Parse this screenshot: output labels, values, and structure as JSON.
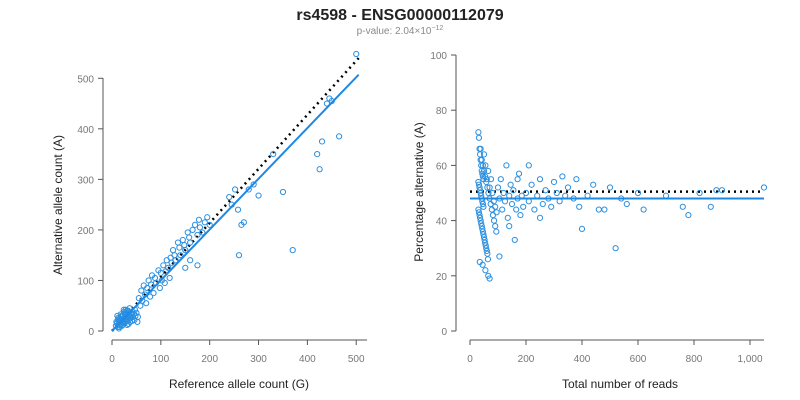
{
  "figure": {
    "title": "rs4598 - ENSG00000112079",
    "subtitle_prefix": "p-value: 2.04×10",
    "subtitle_exp": "−12"
  },
  "colors": {
    "points": "#2b8fe0",
    "fit": "#1e88e5",
    "reference": "#000000",
    "axis": "#555555"
  },
  "chart_data": [
    {
      "type": "scatter",
      "title": "",
      "xlabel": "Reference allele count (G)",
      "ylabel": "Alternative allele count (A)",
      "xlim": [
        0,
        520
      ],
      "ylim": [
        0,
        550
      ],
      "xticks": [
        0,
        100,
        200,
        300,
        400,
        500
      ],
      "yticks": [
        0,
        100,
        200,
        300,
        400,
        500
      ],
      "tick_labels_x": [
        "0",
        "100",
        "200",
        "300",
        "400",
        "500"
      ],
      "tick_labels_y": [
        "0",
        "100",
        "200",
        "300",
        "400",
        "500"
      ],
      "grid": false,
      "reference_line": {
        "style": "dotted",
        "color": "#000000",
        "points": [
          [
            0,
            0
          ],
          [
            505,
            540
          ]
        ]
      },
      "fit_line": {
        "style": "solid",
        "color": "#1e88e5",
        "points": [
          [
            0,
            0
          ],
          [
            505,
            507
          ]
        ]
      },
      "points": [
        [
          8,
          10
        ],
        [
          10,
          15
        ],
        [
          12,
          8
        ],
        [
          12,
          22
        ],
        [
          14,
          18
        ],
        [
          15,
          12
        ],
        [
          16,
          25
        ],
        [
          17,
          20
        ],
        [
          18,
          14
        ],
        [
          19,
          28
        ],
        [
          20,
          10
        ],
        [
          20,
          30
        ],
        [
          21,
          18
        ],
        [
          22,
          24
        ],
        [
          22,
          12
        ],
        [
          23,
          32
        ],
        [
          24,
          20
        ],
        [
          25,
          15
        ],
        [
          25,
          38
        ],
        [
          26,
          26
        ],
        [
          27,
          30
        ],
        [
          28,
          18
        ],
        [
          28,
          42
        ],
        [
          30,
          25
        ],
        [
          30,
          35
        ],
        [
          31,
          12
        ],
        [
          32,
          28
        ],
        [
          33,
          40
        ],
        [
          34,
          22
        ],
        [
          35,
          30
        ],
        [
          36,
          45
        ],
        [
          37,
          18
        ],
        [
          38,
          35
        ],
        [
          39,
          26
        ],
        [
          40,
          32
        ],
        [
          41,
          20
        ],
        [
          42,
          38
        ],
        [
          43,
          28
        ],
        [
          45,
          34
        ],
        [
          46,
          22
        ],
        [
          47,
          42
        ],
        [
          48,
          30
        ],
        [
          50,
          36
        ],
        [
          52,
          18
        ],
        [
          53,
          28
        ],
        [
          14,
          5
        ],
        [
          15,
          20
        ],
        [
          18,
          33
        ],
        [
          20,
          22
        ],
        [
          23,
          16
        ],
        [
          26,
          35
        ],
        [
          29,
          22
        ],
        [
          31,
          40
        ],
        [
          34,
          14
        ],
        [
          36,
          28
        ],
        [
          9,
          18
        ],
        [
          11,
          30
        ],
        [
          13,
          26
        ],
        [
          16,
          8
        ],
        [
          24,
          42
        ],
        [
          55,
          65
        ],
        [
          58,
          50
        ],
        [
          60,
          80
        ],
        [
          62,
          60
        ],
        [
          65,
          90
        ],
        [
          68,
          72
        ],
        [
          70,
          55
        ],
        [
          72,
          85
        ],
        [
          75,
          100
        ],
        [
          78,
          68
        ],
        [
          80,
          92
        ],
        [
          82,
          110
        ],
        [
          85,
          75
        ],
        [
          88,
          105
        ],
        [
          90,
          95
        ],
        [
          95,
          120
        ],
        [
          98,
          85
        ],
        [
          100,
          115
        ],
        [
          102,
          100
        ],
        [
          105,
          130
        ],
        [
          108,
          95
        ],
        [
          110,
          118
        ],
        [
          112,
          140
        ],
        [
          115,
          125
        ],
        [
          118,
          105
        ],
        [
          120,
          145
        ],
        [
          122,
          135
        ],
        [
          125,
          160
        ],
        [
          128,
          150
        ],
        [
          130,
          140
        ],
        [
          135,
          175
        ],
        [
          138,
          165
        ],
        [
          140,
          150
        ],
        [
          145,
          180
        ],
        [
          148,
          170
        ],
        [
          150,
          160
        ],
        [
          155,
          195
        ],
        [
          158,
          185
        ],
        [
          160,
          175
        ],
        [
          165,
          200
        ],
        [
          170,
          210
        ],
        [
          175,
          190
        ],
        [
          178,
          220
        ],
        [
          180,
          205
        ],
        [
          185,
          195
        ],
        [
          190,
          215
        ],
        [
          195,
          225
        ],
        [
          200,
          210
        ],
        [
          160,
          140
        ],
        [
          175,
          130
        ],
        [
          150,
          125
        ],
        [
          240,
          265
        ],
        [
          245,
          250
        ],
        [
          252,
          280
        ],
        [
          258,
          240
        ],
        [
          265,
          210
        ],
        [
          270,
          215
        ],
        [
          280,
          280
        ],
        [
          290,
          290
        ],
        [
          300,
          268
        ],
        [
          330,
          350
        ],
        [
          350,
          275
        ],
        [
          370,
          160
        ],
        [
          260,
          150
        ],
        [
          420,
          350
        ],
        [
          430,
          375
        ],
        [
          440,
          450
        ],
        [
          445,
          460
        ],
        [
          450,
          455
        ],
        [
          465,
          385
        ],
        [
          500,
          548
        ],
        [
          425,
          320
        ]
      ]
    },
    {
      "type": "scatter",
      "title": "",
      "xlabel": "Total number of reads",
      "ylabel": "Percentage alternative (A)",
      "xlim": [
        0,
        1050
      ],
      "ylim": [
        0,
        100
      ],
      "xticks": [
        0,
        200,
        400,
        600,
        800,
        1000
      ],
      "yticks": [
        0,
        20,
        40,
        60,
        80,
        100
      ],
      "tick_labels_x": [
        "0",
        "200",
        "400",
        "600",
        "800",
        "1,000"
      ],
      "tick_labels_y": [
        "0",
        "20",
        "40",
        "60",
        "80",
        "100"
      ],
      "grid": false,
      "reference_line": {
        "style": "dotted",
        "color": "#000000",
        "y": 50.5
      },
      "fit_line": {
        "style": "solid",
        "color": "#1e88e5",
        "y": 48
      },
      "points": [
        [
          30,
          72
        ],
        [
          32,
          70
        ],
        [
          34,
          66
        ],
        [
          36,
          64
        ],
        [
          38,
          62
        ],
        [
          40,
          60
        ],
        [
          42,
          58
        ],
        [
          44,
          57
        ],
        [
          46,
          56
        ],
        [
          48,
          55
        ],
        [
          30,
          54
        ],
        [
          32,
          53
        ],
        [
          34,
          52
        ],
        [
          36,
          51
        ],
        [
          38,
          50
        ],
        [
          40,
          49
        ],
        [
          42,
          48
        ],
        [
          44,
          47
        ],
        [
          46,
          46
        ],
        [
          48,
          45
        ],
        [
          30,
          44
        ],
        [
          32,
          43
        ],
        [
          34,
          42
        ],
        [
          36,
          41
        ],
        [
          38,
          40
        ],
        [
          40,
          39
        ],
        [
          42,
          38
        ],
        [
          44,
          37
        ],
        [
          46,
          36
        ],
        [
          48,
          35
        ],
        [
          50,
          34
        ],
        [
          52,
          33
        ],
        [
          54,
          32
        ],
        [
          56,
          31
        ],
        [
          58,
          30
        ],
        [
          60,
          29
        ],
        [
          62,
          28
        ],
        [
          64,
          26
        ],
        [
          35,
          25
        ],
        [
          45,
          24
        ],
        [
          55,
          22
        ],
        [
          65,
          20
        ],
        [
          70,
          19
        ],
        [
          38,
          66
        ],
        [
          42,
          62
        ],
        [
          46,
          60
        ],
        [
          50,
          58
        ],
        [
          54,
          56
        ],
        [
          58,
          54
        ],
        [
          62,
          52
        ],
        [
          66,
          50
        ],
        [
          70,
          48
        ],
        [
          74,
          46
        ],
        [
          78,
          44
        ],
        [
          82,
          42
        ],
        [
          86,
          40
        ],
        [
          90,
          38
        ],
        [
          94,
          36
        ],
        [
          50,
          64
        ],
        [
          55,
          60
        ],
        [
          60,
          55
        ],
        [
          65,
          58
        ],
        [
          70,
          52
        ],
        [
          75,
          55
        ],
        [
          80,
          50
        ],
        [
          85,
          47
        ],
        [
          90,
          45
        ],
        [
          95,
          43
        ],
        [
          100,
          52
        ],
        [
          105,
          48
        ],
        [
          110,
          55
        ],
        [
          115,
          44
        ],
        [
          120,
          50
        ],
        [
          125,
          47
        ],
        [
          130,
          60
        ],
        [
          135,
          41
        ],
        [
          140,
          49
        ],
        [
          145,
          53
        ],
        [
          150,
          46
        ],
        [
          155,
          51
        ],
        [
          160,
          33
        ],
        [
          165,
          44
        ],
        [
          170,
          48
        ],
        [
          175,
          57
        ],
        [
          180,
          42
        ],
        [
          185,
          49
        ],
        [
          190,
          45
        ],
        [
          200,
          50
        ],
        [
          210,
          47
        ],
        [
          220,
          53
        ],
        [
          230,
          44
        ],
        [
          240,
          49
        ],
        [
          250,
          55
        ],
        [
          260,
          46
        ],
        [
          270,
          51
        ],
        [
          280,
          48
        ],
        [
          290,
          45
        ],
        [
          300,
          54
        ],
        [
          310,
          50
        ],
        [
          320,
          47
        ],
        [
          330,
          56
        ],
        [
          340,
          49
        ],
        [
          350,
          52
        ],
        [
          370,
          48
        ],
        [
          380,
          55
        ],
        [
          390,
          45
        ],
        [
          400,
          37
        ],
        [
          420,
          49
        ],
        [
          440,
          53
        ],
        [
          460,
          44
        ],
        [
          480,
          44
        ],
        [
          500,
          52
        ],
        [
          520,
          30
        ],
        [
          540,
          48
        ],
        [
          560,
          46
        ],
        [
          600,
          50
        ],
        [
          620,
          44
        ],
        [
          700,
          49
        ],
        [
          760,
          45
        ],
        [
          780,
          42
        ],
        [
          820,
          50
        ],
        [
          860,
          45
        ],
        [
          880,
          51
        ],
        [
          900,
          51
        ],
        [
          1050,
          52
        ],
        [
          105,
          27
        ],
        [
          140,
          38
        ],
        [
          170,
          55
        ],
        [
          210,
          60
        ],
        [
          250,
          41
        ]
      ]
    }
  ]
}
